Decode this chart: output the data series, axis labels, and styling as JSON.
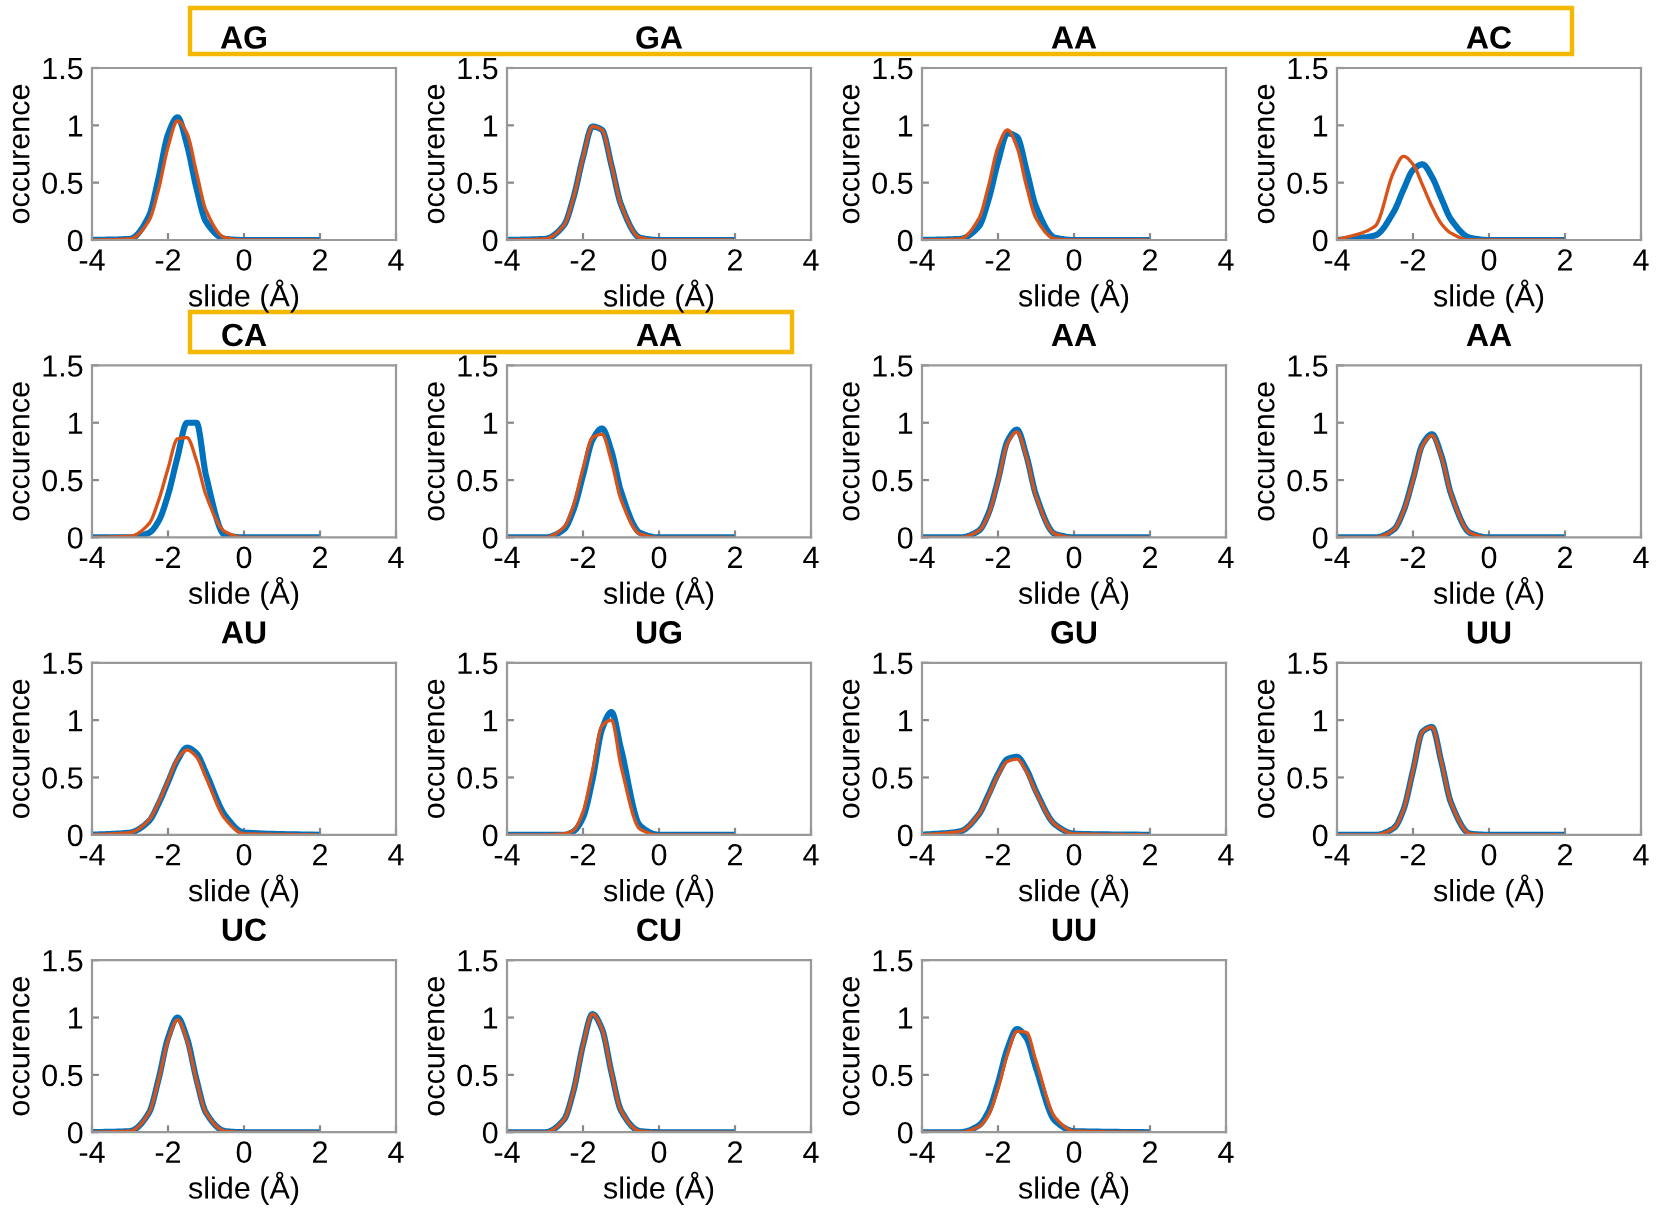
{
  "chart_data": [
    {
      "type": "line",
      "title": "AG",
      "xlabel": "slide (Å)",
      "ylabel": "occurence",
      "x": [
        -4,
        -3,
        -2.5,
        -2.25,
        -2,
        -1.75,
        -1.5,
        -1.25,
        -1,
        -0.5,
        0,
        1.9
      ],
      "xlim": [
        -4,
        4
      ],
      "ylim": [
        0,
        1.5
      ],
      "xticks": [
        -4,
        -2,
        0,
        2,
        4
      ],
      "yticks": [
        0,
        0.5,
        1,
        1.5
      ],
      "series": [
        {
          "color": "#0072bd",
          "values": [
            0,
            0.01,
            0.21,
            0.54,
            0.92,
            1.07,
            0.83,
            0.45,
            0.16,
            0.01,
            0,
            0
          ]
        },
        {
          "color": "#d95319",
          "values": [
            0,
            0.01,
            0.17,
            0.44,
            0.81,
            1.04,
            0.93,
            0.59,
            0.26,
            0.02,
            0,
            0
          ]
        }
      ]
    },
    {
      "type": "line",
      "title": "GA",
      "xlabel": "slide (Å)",
      "ylabel": "occurence",
      "x": [
        -4,
        -3,
        -2.5,
        -2.25,
        -2,
        -1.75,
        -1.5,
        -1.25,
        -1,
        -0.5,
        0,
        1.9
      ],
      "xlim": [
        -4,
        4
      ],
      "ylim": [
        0,
        1.5
      ],
      "xticks": [
        -4,
        -2,
        0,
        2,
        4
      ],
      "yticks": [
        0,
        0.5,
        1,
        1.5
      ],
      "series": [
        {
          "color": "#0072bd",
          "values": [
            0,
            0.01,
            0.13,
            0.37,
            0.72,
            0.99,
            0.96,
            0.65,
            0.31,
            0.02,
            0,
            0
          ]
        },
        {
          "color": "#d95319",
          "values": [
            0,
            0.01,
            0.13,
            0.37,
            0.72,
            0.99,
            0.96,
            0.65,
            0.31,
            0.02,
            0,
            0
          ]
        }
      ]
    },
    {
      "type": "line",
      "title": "AA",
      "xlabel": "slide (Å)",
      "ylabel": "occurence",
      "x": [
        -4,
        -3,
        -2.5,
        -2.25,
        -2,
        -1.75,
        -1.5,
        -1.25,
        -1,
        -0.5,
        0,
        1.9
      ],
      "xlim": [
        -4,
        4
      ],
      "ylim": [
        0,
        1.5
      ],
      "xticks": [
        -4,
        -2,
        0,
        2,
        4
      ],
      "yticks": [
        0,
        0.5,
        1,
        1.5
      ],
      "series": [
        {
          "color": "#0072bd",
          "values": [
            0,
            0.01,
            0.12,
            0.35,
            0.68,
            0.93,
            0.9,
            0.61,
            0.29,
            0.02,
            0,
            0
          ]
        },
        {
          "color": "#d95319",
          "values": [
            0,
            0.01,
            0.19,
            0.47,
            0.81,
            0.96,
            0.81,
            0.47,
            0.19,
            0.01,
            0,
            0
          ]
        }
      ]
    },
    {
      "type": "line",
      "title": "AC",
      "xlabel": "slide (Å)",
      "ylabel": "occurence",
      "x": [
        -4,
        -3,
        -2.5,
        -2.25,
        -2,
        -1.75,
        -1.5,
        -1.25,
        -1,
        -0.5,
        0,
        1.9
      ],
      "xlim": [
        -4,
        4
      ],
      "ylim": [
        0,
        1.5
      ],
      "xticks": [
        -4,
        -2,
        0,
        2,
        4
      ],
      "yticks": [
        0,
        0.5,
        1,
        1.5
      ],
      "series": [
        {
          "color": "#0072bd",
          "values": [
            0,
            0.04,
            0.25,
            0.44,
            0.61,
            0.66,
            0.55,
            0.36,
            0.18,
            0.02,
            0,
            0
          ]
        },
        {
          "color": "#d95319",
          "values": [
            0,
            0.12,
            0.6,
            0.73,
            0.66,
            0.48,
            0.29,
            0.14,
            0.06,
            0,
            0,
            0
          ]
        }
      ]
    },
    {
      "type": "line",
      "title": "CA",
      "xlabel": "slide (Å)",
      "ylabel": "occurence",
      "x": [
        -4,
        -3,
        -2.5,
        -2.25,
        -2,
        -1.75,
        -1.5,
        -1.25,
        -1,
        -0.5,
        0,
        1.9
      ],
      "xlim": [
        -4,
        4
      ],
      "ylim": [
        0,
        1.5
      ],
      "xticks": [
        -4,
        -2,
        0,
        2,
        4
      ],
      "yticks": [
        0,
        0.5,
        1,
        1.5
      ],
      "series": [
        {
          "color": "#0072bd",
          "values": [
            0,
            0,
            0.04,
            0.14,
            0.37,
            0.7,
            1.0,
            1.0,
            0.54,
            0.02,
            0,
            0
          ]
        },
        {
          "color": "#d95319",
          "values": [
            0,
            0.01,
            0.12,
            0.32,
            0.6,
            0.86,
            0.87,
            0.67,
            0.37,
            0.05,
            0,
            0
          ]
        }
      ]
    },
    {
      "type": "line",
      "title": "AA",
      "xlabel": "slide (Å)",
      "ylabel": "occurence",
      "x": [
        -4,
        -3,
        -2.5,
        -2.25,
        -2,
        -1.75,
        -1.5,
        -1.25,
        -1,
        -0.5,
        0,
        1.9
      ],
      "xlim": [
        -4,
        4
      ],
      "ylim": [
        0,
        1.5
      ],
      "xticks": [
        -4,
        -2,
        0,
        2,
        4
      ],
      "yticks": [
        0,
        0.5,
        1,
        1.5
      ],
      "series": [
        {
          "color": "#0072bd",
          "values": [
            0,
            0,
            0.07,
            0.24,
            0.54,
            0.85,
            0.95,
            0.75,
            0.4,
            0.04,
            0,
            0
          ]
        },
        {
          "color": "#d95319",
          "values": [
            0,
            0,
            0.09,
            0.28,
            0.6,
            0.87,
            0.9,
            0.66,
            0.33,
            0.03,
            0,
            0
          ]
        }
      ]
    },
    {
      "type": "line",
      "title": "AA",
      "xlabel": "slide (Å)",
      "ylabel": "occurence",
      "x": [
        -4,
        -3,
        -2.5,
        -2.25,
        -2,
        -1.75,
        -1.5,
        -1.25,
        -1,
        -0.5,
        0,
        1.9
      ],
      "xlim": [
        -4,
        4
      ],
      "ylim": [
        0,
        1.5
      ],
      "xticks": [
        -4,
        -2,
        0,
        2,
        4
      ],
      "yticks": [
        0,
        0.5,
        1,
        1.5
      ],
      "series": [
        {
          "color": "#0072bd",
          "values": [
            0,
            0,
            0.06,
            0.21,
            0.5,
            0.84,
            0.94,
            0.71,
            0.37,
            0.03,
            0,
            0
          ]
        },
        {
          "color": "#d95319",
          "values": [
            0,
            0,
            0.06,
            0.2,
            0.49,
            0.82,
            0.92,
            0.7,
            0.36,
            0.03,
            0,
            0
          ]
        }
      ]
    },
    {
      "type": "line",
      "title": "AA",
      "xlabel": "slide (Å)",
      "ylabel": "occurence",
      "x": [
        -4,
        -3,
        -2.5,
        -2.25,
        -2,
        -1.75,
        -1.5,
        -1.25,
        -1,
        -0.5,
        0,
        1.9
      ],
      "xlim": [
        -4,
        4
      ],
      "ylim": [
        0,
        1.5
      ],
      "xticks": [
        -4,
        -2,
        0,
        2,
        4
      ],
      "yticks": [
        0,
        0.5,
        1,
        1.5
      ],
      "series": [
        {
          "color": "#0072bd",
          "values": [
            0,
            0,
            0.07,
            0.23,
            0.51,
            0.81,
            0.9,
            0.71,
            0.38,
            0.04,
            0,
            0
          ]
        },
        {
          "color": "#d95319",
          "values": [
            0,
            0,
            0.07,
            0.23,
            0.5,
            0.8,
            0.89,
            0.7,
            0.38,
            0.04,
            0,
            0
          ]
        }
      ]
    },
    {
      "type": "line",
      "title": "AU",
      "xlabel": "slide (Å)",
      "ylabel": "occurence",
      "x": [
        -4,
        -3,
        -2.5,
        -2.25,
        -2,
        -1.75,
        -1.5,
        -1.25,
        -1,
        -0.5,
        0,
        1.9
      ],
      "xlim": [
        -4,
        4
      ],
      "ylim": [
        0,
        1.5
      ],
      "xticks": [
        -4,
        -2,
        0,
        2,
        4
      ],
      "yticks": [
        0,
        0.5,
        1,
        1.5
      ],
      "series": [
        {
          "color": "#0072bd",
          "values": [
            0,
            0.02,
            0.12,
            0.27,
            0.46,
            0.65,
            0.76,
            0.71,
            0.54,
            0.17,
            0.02,
            0
          ]
        },
        {
          "color": "#d95319",
          "values": [
            0,
            0.02,
            0.13,
            0.28,
            0.47,
            0.66,
            0.74,
            0.68,
            0.5,
            0.14,
            0.01,
            0
          ]
        }
      ]
    },
    {
      "type": "line",
      "title": "UG",
      "xlabel": "slide (Å)",
      "ylabel": "occurence",
      "x": [
        -4,
        -3,
        -2.5,
        -2.25,
        -2,
        -1.75,
        -1.5,
        -1.25,
        -1,
        -0.5,
        0,
        1.9
      ],
      "xlim": [
        -4,
        4
      ],
      "ylim": [
        0,
        1.5
      ],
      "xticks": [
        -4,
        -2,
        0,
        2,
        4
      ],
      "yticks": [
        0,
        0.5,
        1,
        1.5
      ],
      "series": [
        {
          "color": "#0072bd",
          "values": [
            0,
            0,
            0,
            0.03,
            0.15,
            0.48,
            0.92,
            1.07,
            0.75,
            0.08,
            0,
            0
          ]
        },
        {
          "color": "#d95319",
          "values": [
            0,
            0,
            0.01,
            0.04,
            0.2,
            0.56,
            0.95,
            1.0,
            0.6,
            0.05,
            0,
            0
          ]
        }
      ]
    },
    {
      "type": "line",
      "title": "GU",
      "xlabel": "slide (Å)",
      "ylabel": "occurence",
      "x": [
        -4,
        -3,
        -2.5,
        -2.25,
        -2,
        -1.75,
        -1.5,
        -1.25,
        -1,
        -0.5,
        0,
        1.9
      ],
      "xlim": [
        -4,
        4
      ],
      "ylim": [
        0,
        1.5
      ],
      "xticks": [
        -4,
        -2,
        0,
        2,
        4
      ],
      "yticks": [
        0,
        0.5,
        1,
        1.5
      ],
      "series": [
        {
          "color": "#0072bd",
          "values": [
            0,
            0.03,
            0.18,
            0.35,
            0.53,
            0.66,
            0.68,
            0.57,
            0.38,
            0.09,
            0.01,
            0
          ]
        },
        {
          "color": "#d95319",
          "values": [
            0,
            0.03,
            0.18,
            0.34,
            0.52,
            0.64,
            0.66,
            0.55,
            0.37,
            0.09,
            0.01,
            0
          ]
        }
      ]
    },
    {
      "type": "line",
      "title": "UU",
      "xlabel": "slide (Å)",
      "ylabel": "occurence",
      "x": [
        -4,
        -3,
        -2.5,
        -2.25,
        -2,
        -1.75,
        -1.5,
        -1.25,
        -1,
        -0.5,
        0,
        1.9
      ],
      "xlim": [
        -4,
        4
      ],
      "ylim": [
        0,
        1.5
      ],
      "xticks": [
        -4,
        -2,
        0,
        2,
        4
      ],
      "yticks": [
        0,
        0.5,
        1,
        1.5
      ],
      "series": [
        {
          "color": "#0072bd",
          "values": [
            0,
            0,
            0.06,
            0.22,
            0.56,
            0.9,
            0.94,
            0.63,
            0.28,
            0.01,
            0,
            0
          ]
        },
        {
          "color": "#d95319",
          "values": [
            0,
            0,
            0.06,
            0.22,
            0.56,
            0.9,
            0.94,
            0.63,
            0.28,
            0.01,
            0,
            0
          ]
        }
      ]
    },
    {
      "type": "line",
      "title": "UC",
      "xlabel": "slide (Å)",
      "ylabel": "occurence",
      "x": [
        -4,
        -3,
        -2.5,
        -2.25,
        -2,
        -1.75,
        -1.5,
        -1.25,
        -1,
        -0.5,
        0,
        1.9
      ],
      "xlim": [
        -4,
        4
      ],
      "ylim": [
        0,
        1.5
      ],
      "xticks": [
        -4,
        -2,
        0,
        2,
        4
      ],
      "yticks": [
        0,
        0.5,
        1,
        1.5
      ],
      "series": [
        {
          "color": "#0072bd",
          "values": [
            0,
            0.01,
            0.17,
            0.46,
            0.82,
            1.0,
            0.82,
            0.46,
            0.17,
            0.01,
            0,
            0
          ]
        },
        {
          "color": "#d95319",
          "values": [
            0,
            0.01,
            0.17,
            0.45,
            0.8,
            0.98,
            0.8,
            0.45,
            0.17,
            0.01,
            0,
            0
          ]
        }
      ]
    },
    {
      "type": "line",
      "title": "CU",
      "xlabel": "slide (Å)",
      "ylabel": "occurence",
      "x": [
        -4,
        -3,
        -2.5,
        -2.25,
        -2,
        -1.75,
        -1.5,
        -1.25,
        -1,
        -0.5,
        0,
        1.9
      ],
      "xlim": [
        -4,
        4
      ],
      "ylim": [
        0,
        1.5
      ],
      "xticks": [
        -4,
        -2,
        0,
        2,
        4
      ],
      "yticks": [
        0,
        0.5,
        1,
        1.5
      ],
      "series": [
        {
          "color": "#0072bd",
          "values": [
            0,
            0,
            0.11,
            0.36,
            0.76,
            1.03,
            0.9,
            0.52,
            0.19,
            0.01,
            0,
            0
          ]
        },
        {
          "color": "#d95319",
          "values": [
            0,
            0,
            0.11,
            0.36,
            0.76,
            1.03,
            0.9,
            0.52,
            0.19,
            0.01,
            0,
            0
          ]
        }
      ]
    },
    {
      "type": "line",
      "title": "UU",
      "xlabel": "slide (Å)",
      "ylabel": "occurence",
      "x": [
        -4,
        -3,
        -2.5,
        -2.25,
        -2,
        -1.75,
        -1.5,
        -1.25,
        -1,
        -0.5,
        0,
        1.9
      ],
      "xlim": [
        -4,
        4
      ],
      "ylim": [
        0,
        1.5
      ],
      "xticks": [
        -4,
        -2,
        0,
        2,
        4
      ],
      "yticks": [
        0,
        0.5,
        1,
        1.5
      ],
      "series": [
        {
          "color": "#0072bd",
          "values": [
            0,
            0,
            0.06,
            0.18,
            0.43,
            0.73,
            0.9,
            0.82,
            0.56,
            0.1,
            0.01,
            0
          ]
        },
        {
          "color": "#d95319",
          "values": [
            0,
            0,
            0.05,
            0.15,
            0.38,
            0.68,
            0.88,
            0.87,
            0.62,
            0.13,
            0.01,
            0
          ]
        }
      ]
    }
  ]
}
